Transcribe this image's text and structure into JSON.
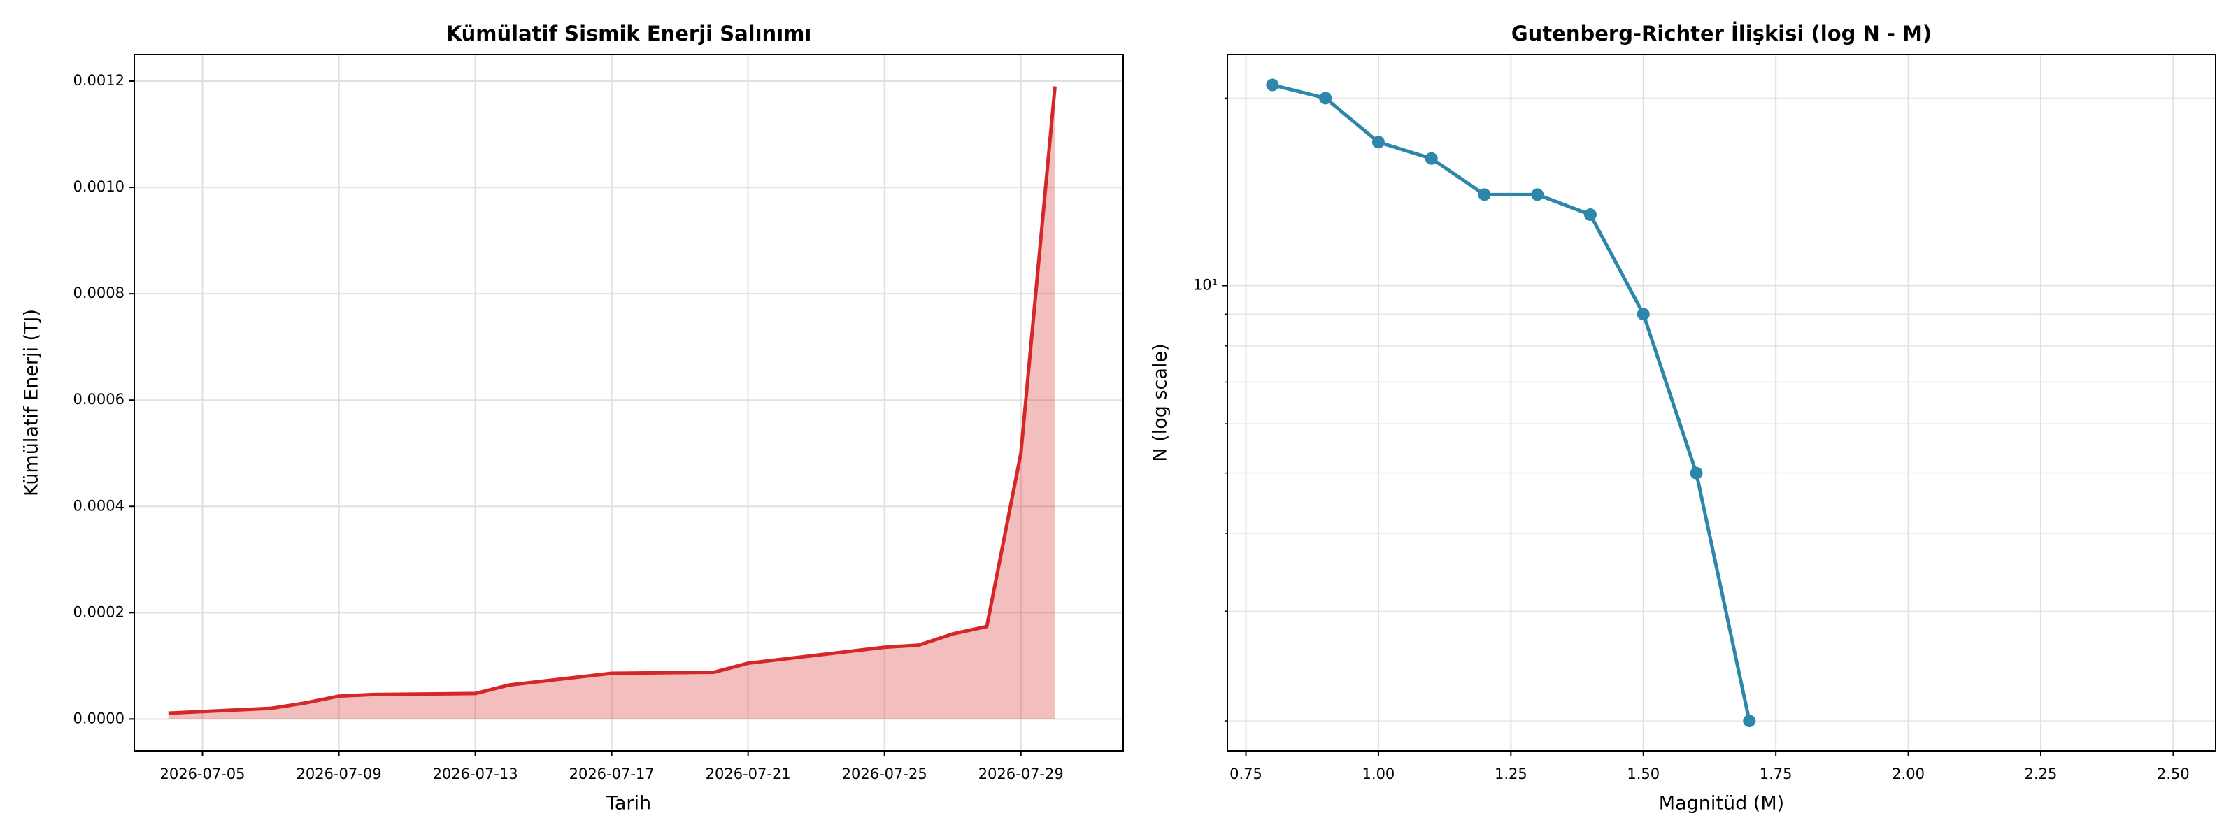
{
  "chart_data": [
    {
      "type": "area",
      "title": "Kümülatif Sismik Enerji Salınımı",
      "xlabel": "Tarih",
      "ylabel": "Kümülatif Enerji (TJ)",
      "x": [
        "2026-07-04",
        "2026-07-07",
        "2026-07-08",
        "2026-07-09",
        "2026-07-10",
        "2026-07-13",
        "2026-07-14",
        "2026-07-17",
        "2026-07-20",
        "2026-07-21",
        "2026-07-25",
        "2026-07-26",
        "2026-07-27",
        "2026-07-28",
        "2026-07-29",
        "2026-07-30"
      ],
      "values": [
        1.1e-05,
        2e-05,
        3e-05,
        4.3e-05,
        4.6e-05,
        4.8e-05,
        6.4e-05,
        8.6e-05,
        8.8e-05,
        0.000105,
        0.000135,
        0.000139,
        0.00016,
        0.000174,
        0.0005,
        0.00119
      ],
      "color": "#d62728",
      "xlim": [
        "2026-07-03",
        "2026-08-01"
      ],
      "xticks": [
        "2026-07-05",
        "2026-07-09",
        "2026-07-13",
        "2026-07-17",
        "2026-07-21",
        "2026-07-25",
        "2026-07-29"
      ],
      "ylim": [
        -6e-05,
        0.00125
      ],
      "yticks": [
        {
          "value": 0,
          "label": "0.0000"
        },
        0.0002,
        0.0004,
        0.0006,
        0.0008,
        {
          "value": 0.001,
          "label": "0.0010"
        },
        0.0012
      ],
      "grid": true
    },
    {
      "type": "line",
      "title": "Gutenberg-Richter İlişkisi (log N - M)",
      "xlabel": "Magnitüd (M)",
      "ylabel": "N (log scale)",
      "x": [
        0.8,
        0.9,
        1.0,
        1.1,
        1.2,
        1.3,
        1.4,
        1.5,
        1.6,
        1.7
      ],
      "values": [
        21,
        20,
        17,
        16,
        14,
        14,
        13,
        9,
        5,
        2
      ],
      "color": "#2e86ab",
      "xlim": [
        0.715,
        2.58
      ],
      "xticks": [
        0.75,
        {
          "value": 1.0,
          "label": "1.00"
        },
        1.25,
        {
          "value": 1.5,
          "label": "1.50"
        },
        1.75,
        {
          "value": 2.0,
          "label": "2.00"
        },
        2.25,
        {
          "value": 2.5,
          "label": "2.50"
        }
      ],
      "ylim": [
        1.79,
        23.5
      ],
      "y_scale": "log",
      "yticks": [
        {
          "value": 10,
          "label": "10¹"
        }
      ],
      "yminor": [
        2,
        3,
        4,
        5,
        6,
        7,
        8,
        9,
        20
      ],
      "grid": true
    }
  ]
}
